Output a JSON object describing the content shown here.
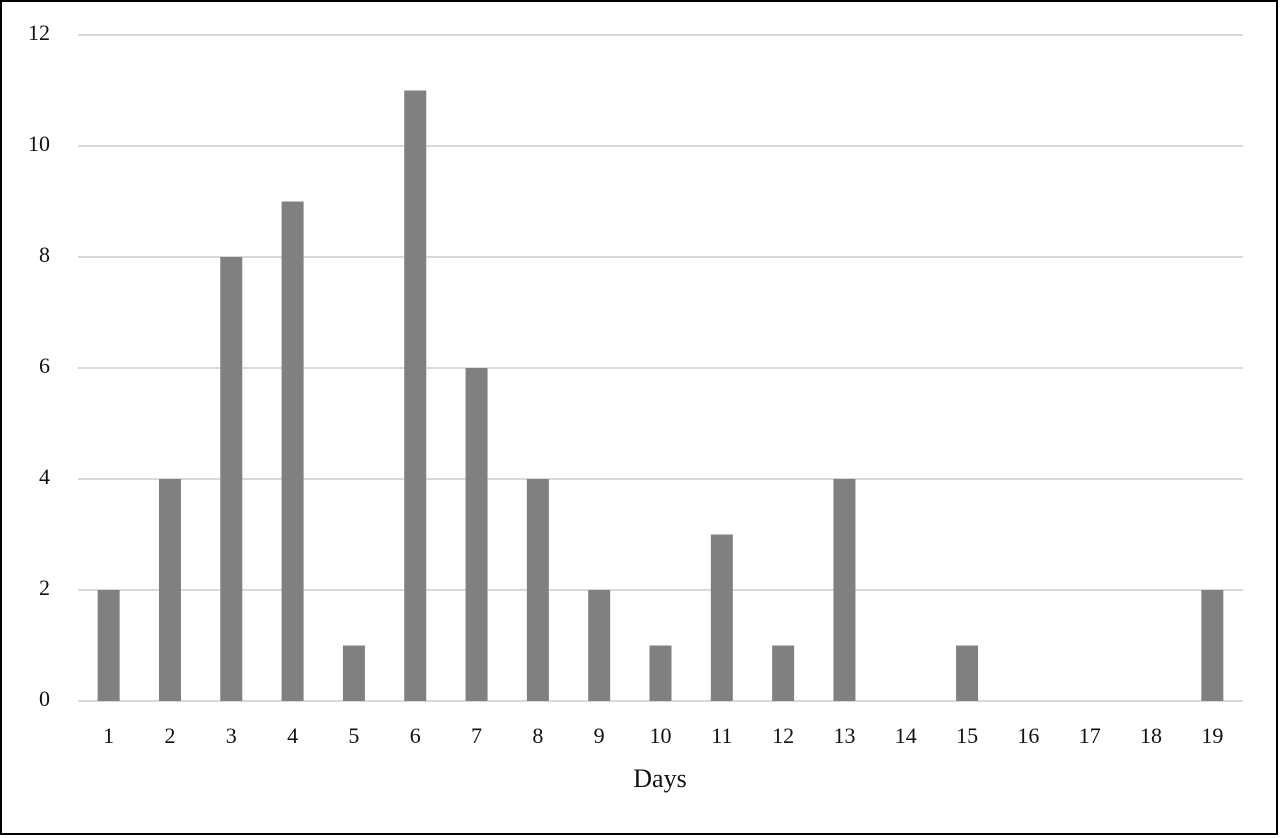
{
  "chart_data": {
    "type": "bar",
    "x_label": "Days",
    "categories": [
      "1",
      "2",
      "3",
      "4",
      "5",
      "6",
      "7",
      "8",
      "9",
      "10",
      "11",
      "12",
      "13",
      "14",
      "15",
      "16",
      "17",
      "18",
      "19"
    ],
    "values": [
      2,
      4,
      8,
      9,
      1,
      11,
      6,
      4,
      2,
      1,
      3,
      1,
      4,
      0,
      1,
      0,
      0,
      0,
      2
    ],
    "color": "#808080",
    "ylim": [
      0,
      12
    ],
    "yticks": [
      0,
      2,
      4,
      6,
      8,
      10,
      12
    ],
    "grid": true
  }
}
